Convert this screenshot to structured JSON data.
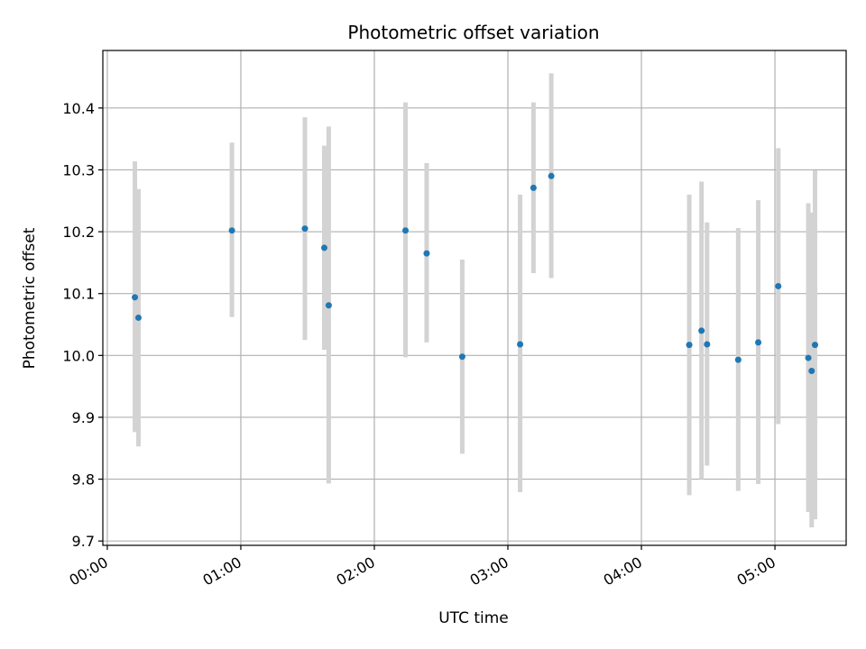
{
  "chart_data": {
    "type": "scatter",
    "title": "Photometric offset variation",
    "xlabel": "UTC time",
    "ylabel": "Photometric offset",
    "x_unit": "minutes",
    "xlim": [
      -2,
      332
    ],
    "ylim": [
      9.693,
      10.493
    ],
    "grid": true,
    "x_ticks": [
      {
        "value": 0,
        "label": "00:00"
      },
      {
        "value": 60,
        "label": "01:00"
      },
      {
        "value": 120,
        "label": "02:00"
      },
      {
        "value": 180,
        "label": "03:00"
      },
      {
        "value": 240,
        "label": "04:00"
      },
      {
        "value": 300,
        "label": "05:00"
      }
    ],
    "y_ticks": [
      {
        "value": 9.7,
        "label": "9.7"
      },
      {
        "value": 9.8,
        "label": "9.8"
      },
      {
        "value": 9.9,
        "label": "9.9"
      },
      {
        "value": 10.0,
        "label": "10.0"
      },
      {
        "value": 10.1,
        "label": "10.1"
      },
      {
        "value": 10.2,
        "label": "10.2"
      },
      {
        "value": 10.3,
        "label": "10.3"
      },
      {
        "value": 10.4,
        "label": "10.4"
      }
    ],
    "point_color": "#1f77b4",
    "errorbar_color": "#d3d3d3",
    "points": [
      {
        "x": 12.4,
        "y": 10.094,
        "lo": 9.876,
        "hi": 10.314
      },
      {
        "x": 14.0,
        "y": 10.061,
        "lo": 9.853,
        "hi": 10.269
      },
      {
        "x": 56.0,
        "y": 10.202,
        "lo": 10.062,
        "hi": 10.344
      },
      {
        "x": 88.8,
        "y": 10.205,
        "lo": 10.025,
        "hi": 10.385
      },
      {
        "x": 97.5,
        "y": 10.174,
        "lo": 10.009,
        "hi": 10.339
      },
      {
        "x": 99.5,
        "y": 10.081,
        "lo": 9.793,
        "hi": 10.37
      },
      {
        "x": 134.0,
        "y": 10.202,
        "lo": 9.997,
        "hi": 10.409
      },
      {
        "x": 143.5,
        "y": 10.165,
        "lo": 10.021,
        "hi": 10.311
      },
      {
        "x": 159.5,
        "y": 9.998,
        "lo": 9.841,
        "hi": 10.155
      },
      {
        "x": 185.5,
        "y": 10.018,
        "lo": 9.779,
        "hi": 10.26
      },
      {
        "x": 191.5,
        "y": 10.271,
        "lo": 10.133,
        "hi": 10.409
      },
      {
        "x": 199.5,
        "y": 10.29,
        "lo": 10.125,
        "hi": 10.456
      },
      {
        "x": 261.5,
        "y": 10.017,
        "lo": 9.774,
        "hi": 10.26
      },
      {
        "x": 267.0,
        "y": 10.04,
        "lo": 9.8,
        "hi": 10.281
      },
      {
        "x": 269.5,
        "y": 10.018,
        "lo": 9.822,
        "hi": 10.215
      },
      {
        "x": 283.5,
        "y": 9.993,
        "lo": 9.781,
        "hi": 10.206
      },
      {
        "x": 292.5,
        "y": 10.021,
        "lo": 9.792,
        "hi": 10.251
      },
      {
        "x": 301.5,
        "y": 10.112,
        "lo": 9.889,
        "hi": 10.335
      },
      {
        "x": 315.0,
        "y": 9.996,
        "lo": 9.747,
        "hi": 10.246
      },
      {
        "x": 316.5,
        "y": 9.975,
        "lo": 9.722,
        "hi": 10.231
      },
      {
        "x": 318.0,
        "y": 10.017,
        "lo": 9.735,
        "hi": 10.299
      }
    ]
  }
}
